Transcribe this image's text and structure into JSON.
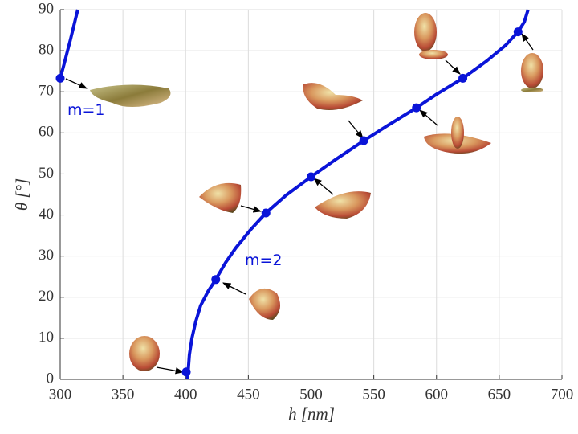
{
  "chart_data": {
    "type": "line",
    "x_label": "h [nm]",
    "y_label": "θ [°]",
    "xlim": [
      300,
      700
    ],
    "xticks": [
      300,
      350,
      400,
      450,
      500,
      550,
      600,
      650,
      700
    ],
    "ylim": [
      0,
      90
    ],
    "yticks": [
      0,
      10,
      20,
      30,
      40,
      50,
      60,
      70,
      80,
      90
    ],
    "grid": true,
    "annotations": [
      "m=1",
      "m=2"
    ],
    "series": [
      {
        "color": "#0a14d8",
        "x": [
          300,
          302,
          304,
          306,
          308,
          310,
          312,
          314
        ],
        "values": [
          73.3,
          75.5,
          77.8,
          80.2,
          82.5,
          85,
          87.5,
          90
        ],
        "points": {
          "x": [
            300
          ],
          "values": [
            73.3
          ]
        }
      },
      {
        "color": "#0a14d8",
        "x": [
          401.5,
          402,
          403,
          405,
          408,
          412,
          418,
          424,
          432,
          440,
          452,
          464,
          480,
          500,
          520,
          542,
          560,
          584,
          600,
          621,
          640,
          655,
          665,
          670,
          673
        ],
        "values": [
          0,
          2,
          6,
          10,
          14,
          18,
          21.5,
          24.3,
          28.5,
          32,
          36.5,
          40.5,
          44.8,
          49.3,
          53.6,
          58.1,
          61.6,
          66.1,
          69.4,
          73.3,
          77.5,
          81.3,
          84.6,
          87,
          90
        ],
        "points": {
          "x": [
            400.5,
            424,
            464,
            500,
            542,
            584,
            621,
            665
          ],
          "values": [
            1.8,
            24.3,
            40.5,
            49.3,
            58.1,
            66.1,
            73.3,
            84.6
          ]
        }
      }
    ]
  }
}
